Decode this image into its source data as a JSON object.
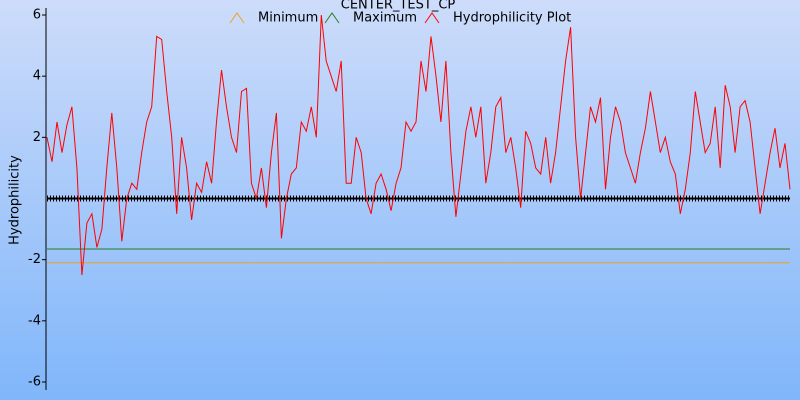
{
  "chart_data": {
    "type": "line",
    "title": "CENTER_TEST_CP",
    "y_label": "Hydrophilicity",
    "ylim": [
      -6,
      6
    ],
    "yticks": [
      -6,
      -4,
      -2,
      2,
      4,
      6
    ],
    "series": [
      {
        "name": "Minimum",
        "color": "#f0a020",
        "x": [
          0,
          149
        ],
        "values": [
          -2.1,
          -2.1
        ]
      },
      {
        "name": "Maximum",
        "color": "#208020",
        "x": [
          0,
          149
        ],
        "values": [
          -1.65,
          -1.65
        ]
      },
      {
        "name": "Hydrophilicity Plot",
        "color": "#ff0000",
        "values": [
          2.0,
          1.2,
          2.5,
          1.5,
          2.4,
          3.0,
          1.0,
          -2.5,
          -0.8,
          -0.5,
          -1.6,
          -1.0,
          1.0,
          2.8,
          1.0,
          -1.4,
          0.0,
          0.5,
          0.3,
          1.5,
          2.5,
          3.0,
          5.3,
          5.2,
          3.5,
          2.0,
          -0.5,
          2.0,
          1.0,
          -0.7,
          0.5,
          0.2,
          1.2,
          0.5,
          2.5,
          4.2,
          3.0,
          2.0,
          1.5,
          3.5,
          3.6,
          0.5,
          0.0,
          1.0,
          -0.3,
          1.5,
          2.8,
          -1.3,
          0.0,
          0.8,
          1.0,
          2.5,
          2.2,
          3.0,
          2.0,
          6.0,
          4.5,
          4.0,
          3.5,
          4.5,
          0.5,
          0.5,
          2.0,
          1.5,
          0.0,
          -0.5,
          0.5,
          0.8,
          0.3,
          -0.4,
          0.5,
          1.0,
          2.5,
          2.2,
          2.5,
          4.5,
          3.5,
          5.3,
          4.0,
          2.5,
          4.5,
          1.5,
          -0.6,
          0.8,
          2.2,
          3.0,
          2.0,
          3.0,
          0.5,
          1.5,
          3.0,
          3.3,
          1.5,
          2.0,
          1.0,
          -0.3,
          2.2,
          1.8,
          1.0,
          0.8,
          2.0,
          0.5,
          1.5,
          3.0,
          4.5,
          5.6,
          2.0,
          0.0,
          1.5,
          3.0,
          2.5,
          3.3,
          0.3,
          2.0,
          3.0,
          2.5,
          1.5,
          1.0,
          0.5,
          1.5,
          2.3,
          3.5,
          2.5,
          1.5,
          2.0,
          1.2,
          0.8,
          -0.5,
          0.3,
          1.5,
          3.5,
          2.5,
          1.5,
          1.8,
          3.0,
          1.0,
          3.7,
          3.0,
          1.5,
          3.0,
          3.2,
          2.5,
          1.0,
          -0.5,
          0.5,
          1.5,
          2.3,
          1.0,
          1.8,
          0.3
        ]
      }
    ]
  }
}
